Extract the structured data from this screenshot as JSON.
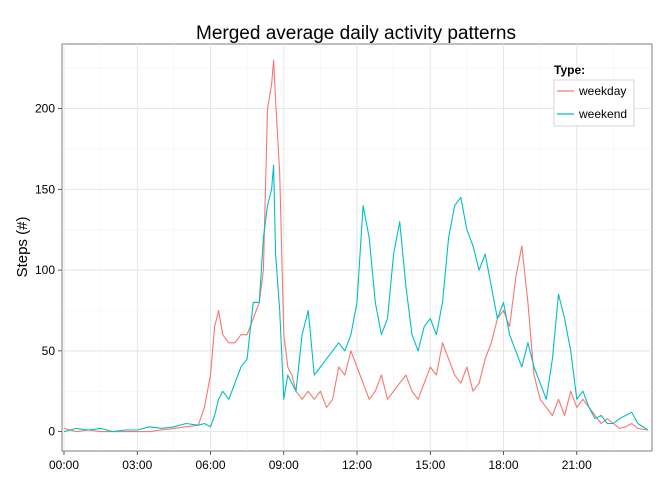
{
  "chart_data": {
    "type": "line",
    "title": "Merged average daily activity patterns",
    "xlabel": "",
    "ylabel": "Steps (#)",
    "xlim": [
      "00:00",
      "23:55"
    ],
    "ylim": [
      -12,
      240
    ],
    "x_ticks": [
      "00:00",
      "03:00",
      "06:00",
      "09:00",
      "12:00",
      "15:00",
      "18:00",
      "21:00"
    ],
    "y_ticks": [
      0,
      50,
      100,
      150,
      200
    ],
    "grid": true,
    "legend": {
      "title": "Type:",
      "position": "top-right"
    },
    "x": [
      "00:00",
      "00:30",
      "01:00",
      "01:30",
      "02:00",
      "02:30",
      "03:00",
      "03:30",
      "04:00",
      "04:30",
      "05:00",
      "05:30",
      "05:45",
      "06:00",
      "06:10",
      "06:20",
      "06:30",
      "06:45",
      "07:00",
      "07:15",
      "07:30",
      "07:45",
      "08:00",
      "08:10",
      "08:20",
      "08:30",
      "08:35",
      "08:40",
      "08:50",
      "09:00",
      "09:10",
      "09:20",
      "09:30",
      "09:45",
      "10:00",
      "10:15",
      "10:30",
      "10:45",
      "11:00",
      "11:15",
      "11:30",
      "11:45",
      "12:00",
      "12:15",
      "12:30",
      "12:45",
      "13:00",
      "13:15",
      "13:30",
      "13:45",
      "14:00",
      "14:15",
      "14:30",
      "14:45",
      "15:00",
      "15:15",
      "15:30",
      "15:45",
      "16:00",
      "16:15",
      "16:30",
      "16:45",
      "17:00",
      "17:15",
      "17:30",
      "17:45",
      "18:00",
      "18:15",
      "18:30",
      "18:45",
      "19:00",
      "19:15",
      "19:30",
      "19:45",
      "20:00",
      "20:15",
      "20:30",
      "20:45",
      "21:00",
      "21:15",
      "21:30",
      "21:45",
      "22:00",
      "22:15",
      "22:30",
      "22:45",
      "23:00",
      "23:15",
      "23:30",
      "23:55"
    ],
    "series": [
      {
        "name": "weekday",
        "color": "#F8766D",
        "values": [
          2,
          0,
          1,
          0,
          0,
          0,
          0,
          0,
          1,
          2,
          3,
          4,
          15,
          35,
          65,
          75,
          60,
          55,
          55,
          60,
          60,
          70,
          80,
          100,
          200,
          215,
          230,
          205,
          160,
          60,
          40,
          35,
          25,
          20,
          25,
          20,
          25,
          15,
          20,
          40,
          35,
          50,
          40,
          30,
          20,
          25,
          35,
          20,
          25,
          30,
          35,
          25,
          20,
          30,
          40,
          35,
          55,
          45,
          35,
          30,
          40,
          25,
          30,
          45,
          55,
          70,
          75,
          65,
          95,
          115,
          80,
          35,
          20,
          15,
          10,
          20,
          10,
          25,
          15,
          20,
          15,
          10,
          5,
          8,
          5,
          2,
          3,
          5,
          2,
          1
        ]
      },
      {
        "name": "weekend",
        "color": "#00BFC4",
        "values": [
          0,
          2,
          1,
          2,
          0,
          1,
          1,
          3,
          2,
          3,
          5,
          4,
          5,
          3,
          10,
          20,
          25,
          20,
          30,
          40,
          45,
          80,
          80,
          120,
          140,
          150,
          165,
          110,
          75,
          20,
          35,
          30,
          25,
          60,
          75,
          35,
          40,
          45,
          50,
          55,
          50,
          60,
          80,
          140,
          120,
          80,
          60,
          70,
          110,
          130,
          90,
          60,
          50,
          65,
          70,
          60,
          80,
          120,
          140,
          145,
          125,
          115,
          100,
          110,
          90,
          70,
          80,
          60,
          50,
          40,
          55,
          40,
          30,
          20,
          45,
          85,
          70,
          50,
          20,
          25,
          15,
          8,
          10,
          5,
          5,
          8,
          10,
          12,
          5,
          1
        ]
      }
    ]
  }
}
